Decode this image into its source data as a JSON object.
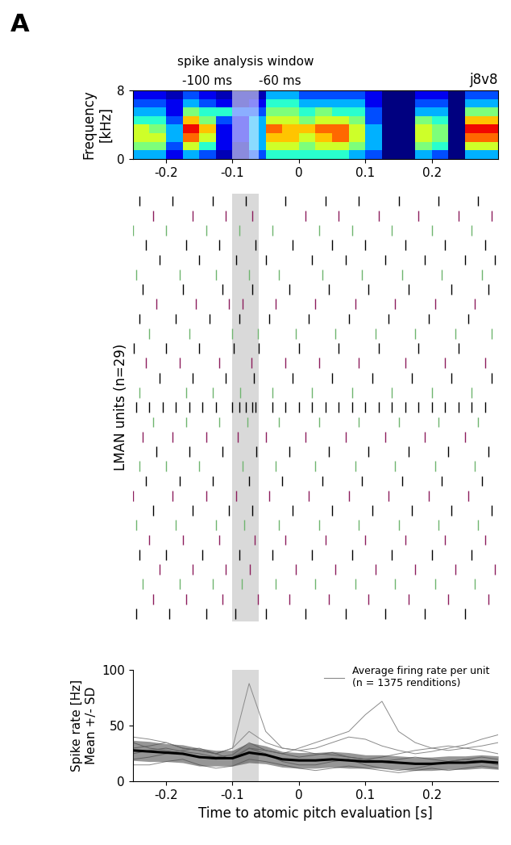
{
  "panel_label": "A",
  "chart_data": [
    {
      "type": "heatmap",
      "ylabel": "Frequency\n[kHz]",
      "annotations": {
        "window_title": "spike analysis window",
        "window_start_label": "-100 ms",
        "window_end_label": "-60 ms",
        "bird": "j8v8"
      },
      "window": [
        -0.1,
        -0.06
      ],
      "time_bins": [
        -0.25,
        -0.225,
        -0.2,
        -0.175,
        -0.15,
        -0.125,
        -0.1,
        -0.075,
        -0.05,
        -0.025,
        0,
        0.025,
        0.05,
        0.075,
        0.1,
        0.125,
        0.15,
        0.175,
        0.2,
        0.225,
        0.25,
        0.275,
        0.3
      ],
      "freq_bins": [
        0,
        1,
        2,
        3,
        4,
        5,
        6,
        7,
        8
      ],
      "cells": [
        [
          0.3,
          0.3,
          0.1,
          0.3,
          0.2,
          0.05,
          0.05,
          0.2,
          0.4,
          0.4,
          0.4,
          0.4,
          0.4,
          0.3,
          0.2,
          0,
          0,
          0.3,
          0.2,
          0,
          0.3,
          0.3
        ],
        [
          0.5,
          0.5,
          0.2,
          0.6,
          0.4,
          0.1,
          0.05,
          0.3,
          0.6,
          0.6,
          0.5,
          0.6,
          0.6,
          0.5,
          0.3,
          0,
          0,
          0.5,
          0.4,
          0,
          0.6,
          0.6
        ],
        [
          0.6,
          0.6,
          0.3,
          0.8,
          0.6,
          0.1,
          0.1,
          0.3,
          0.7,
          0.7,
          0.6,
          0.7,
          0.8,
          0.6,
          0.3,
          0,
          0,
          0.6,
          0.5,
          0,
          0.8,
          0.8
        ],
        [
          0.6,
          0.5,
          0.3,
          0.9,
          0.7,
          0.1,
          0.1,
          0.3,
          0.8,
          0.7,
          0.7,
          0.8,
          0.8,
          0.6,
          0.3,
          0,
          0,
          0.6,
          0.5,
          0,
          0.9,
          0.9
        ],
        [
          0.4,
          0.4,
          0.2,
          0.7,
          0.5,
          0.2,
          0.1,
          0.3,
          0.6,
          0.6,
          0.5,
          0.6,
          0.6,
          0.5,
          0.2,
          0,
          0,
          0.5,
          0.4,
          0,
          0.7,
          0.7
        ],
        [
          0.3,
          0.3,
          0.1,
          0.5,
          0.4,
          0.4,
          0.2,
          0.2,
          0.5,
          0.5,
          0.4,
          0.5,
          0.4,
          0.4,
          0.2,
          0,
          0,
          0.3,
          0.3,
          0,
          0.5,
          0.5
        ],
        [
          0.2,
          0.2,
          0.1,
          0.3,
          0.2,
          0.1,
          0.05,
          0.1,
          0.4,
          0.4,
          0.3,
          0.3,
          0.3,
          0.3,
          0.1,
          0,
          0,
          0.2,
          0.2,
          0,
          0.3,
          0.3
        ],
        [
          0.1,
          0.1,
          0.05,
          0.2,
          0.1,
          0.05,
          0.05,
          0.05,
          0.3,
          0.3,
          0.2,
          0.2,
          0.2,
          0.2,
          0.1,
          0,
          0,
          0.1,
          0.1,
          0,
          0.2,
          0.2
        ]
      ],
      "color_range": [
        0,
        1
      ],
      "xlim": [
        -0.25,
        0.3
      ],
      "ylim": [
        0,
        8
      ],
      "xticks": [
        -0.2,
        -0.1,
        0,
        0.1,
        0.2
      ],
      "yticks": [
        0,
        8
      ]
    },
    {
      "type": "raster",
      "ylabel": "LMAN units (n=29)",
      "tick_labels": false,
      "xlim": [
        -0.25,
        0.3
      ],
      "colors": [
        "#000000",
        "#8c1d5c",
        "#6fb56f",
        "#000000",
        "#000000",
        "#6fb56f",
        "#000000",
        "#8c1d5c",
        "#000000",
        "#6fb56f",
        "#000000",
        "#8c1d5c",
        "#000000",
        "#6fb56f",
        "#000000",
        "#6fb56f",
        "#8c1d5c",
        "#000000",
        "#6fb56f",
        "#000000",
        "#8c1d5c",
        "#000000",
        "#6fb56f",
        "#8c1d5c",
        "#000000",
        "#8c1d5c",
        "#6fb56f",
        "#8c1d5c",
        "#000000"
      ],
      "spikes": [
        [
          -0.24,
          -0.19,
          -0.13,
          -0.08,
          -0.02,
          0.04,
          0.09,
          0.15,
          0.21,
          0.27
        ],
        [
          -0.22,
          -0.16,
          -0.11,
          -0.07,
          0.01,
          0.06,
          0.12,
          0.18,
          0.24,
          0.29
        ],
        [
          -0.25,
          -0.2,
          -0.14,
          -0.09,
          -0.04,
          0.03,
          0.08,
          0.14,
          0.2,
          0.26
        ],
        [
          -0.23,
          -0.17,
          -0.12,
          -0.065,
          -0.01,
          0.05,
          0.1,
          0.16,
          0.22,
          0.28
        ],
        [
          -0.21,
          -0.15,
          -0.095,
          -0.05,
          0.02,
          0.07,
          0.13,
          0.19,
          0.25,
          0.295
        ],
        [
          -0.245,
          -0.18,
          -0.125,
          -0.075,
          -0.03,
          0.035,
          0.095,
          0.155,
          0.215,
          0.275
        ],
        [
          -0.235,
          -0.175,
          -0.115,
          -0.07,
          -0.015,
          0.045,
          0.105,
          0.165,
          0.23,
          0.285
        ],
        [
          -0.215,
          -0.155,
          -0.105,
          -0.085,
          -0.035,
          0.025,
          0.085,
          0.145,
          0.205,
          0.265
        ],
        [
          -0.24,
          -0.185,
          -0.135,
          -0.09,
          -0.045,
          0.015,
          0.075,
          0.135,
          0.195,
          0.255
        ],
        [
          -0.225,
          -0.165,
          -0.1,
          -0.062,
          -0.005,
          0.055,
          0.115,
          0.175,
          0.235,
          0.29
        ],
        [
          -0.248,
          -0.2,
          -0.15,
          -0.098,
          -0.06,
          0.0,
          0.06,
          0.12,
          0.18,
          0.24
        ],
        [
          -0.23,
          -0.18,
          -0.12,
          -0.072,
          -0.02,
          0.03,
          0.09,
          0.16,
          0.22,
          0.28
        ],
        [
          -0.21,
          -0.16,
          -0.11,
          -0.068,
          -0.01,
          0.05,
          0.11,
          0.17,
          0.23,
          0.29
        ],
        [
          -0.24,
          -0.17,
          -0.13,
          -0.088,
          -0.04,
          0.02,
          0.08,
          0.14,
          0.2,
          0.26
        ],
        [
          -0.245,
          -0.225,
          -0.205,
          -0.185,
          -0.165,
          -0.145,
          -0.125,
          -0.1,
          -0.09,
          -0.08,
          -0.07,
          -0.065,
          -0.04,
          -0.02,
          0.0,
          0.02,
          0.04,
          0.06,
          0.08,
          0.1,
          0.12,
          0.14,
          0.16,
          0.18,
          0.2,
          0.22,
          0.24,
          0.26,
          0.28
        ],
        [
          -0.22,
          -0.17,
          -0.12,
          -0.078,
          -0.03,
          0.03,
          0.09,
          0.15,
          0.21,
          0.27
        ],
        [
          -0.235,
          -0.19,
          -0.14,
          -0.092,
          -0.05,
          0.01,
          0.07,
          0.13,
          0.19,
          0.25
        ],
        [
          -0.215,
          -0.165,
          -0.115,
          -0.064,
          -0.015,
          0.045,
          0.105,
          0.165,
          0.225,
          0.285
        ],
        [
          -0.24,
          -0.2,
          -0.15,
          -0.085,
          -0.035,
          0.025,
          0.085,
          0.145,
          0.205,
          0.265
        ],
        [
          -0.23,
          -0.18,
          -0.13,
          -0.075,
          -0.025,
          0.035,
          0.095,
          0.155,
          0.215,
          0.275
        ],
        [
          -0.25,
          -0.19,
          -0.14,
          -0.095,
          -0.045,
          0.015,
          0.075,
          0.135,
          0.195,
          0.255
        ],
        [
          -0.22,
          -0.16,
          -0.105,
          -0.07,
          -0.01,
          0.05,
          0.11,
          0.17,
          0.23,
          0.29
        ],
        [
          -0.245,
          -0.185,
          -0.125,
          -0.082,
          -0.03,
          0.03,
          0.09,
          0.15,
          0.21,
          0.27
        ],
        [
          -0.225,
          -0.175,
          -0.12,
          -0.066,
          -0.02,
          0.04,
          0.1,
          0.16,
          0.22,
          0.28
        ],
        [
          -0.24,
          -0.2,
          -0.145,
          -0.09,
          -0.04,
          0.02,
          0.08,
          0.14,
          0.2,
          0.26
        ],
        [
          -0.21,
          -0.16,
          -0.11,
          -0.074,
          -0.005,
          0.055,
          0.115,
          0.175,
          0.235,
          0.295
        ],
        [
          -0.235,
          -0.18,
          -0.13,
          -0.086,
          -0.035,
          0.025,
          0.085,
          0.145,
          0.205,
          0.265
        ],
        [
          -0.22,
          -0.17,
          -0.115,
          -0.062,
          -0.015,
          0.045,
          0.105,
          0.165,
          0.225,
          0.285
        ],
        [
          -0.245,
          -0.195,
          -0.14,
          -0.096,
          -0.05,
          0.01,
          0.07,
          0.13,
          0.19,
          0.25
        ]
      ]
    },
    {
      "type": "line",
      "xlabel": "Time to atomic pitch evaluation [s]",
      "ylabel": "Spike rate [Hz]\nMean +/- SD",
      "legend": "upper right",
      "legend_label": "Average firing rate per unit\n(n = 1375 renditions)",
      "x": [
        -0.25,
        -0.225,
        -0.2,
        -0.175,
        -0.15,
        -0.125,
        -0.1,
        -0.075,
        -0.05,
        -0.025,
        0,
        0.025,
        0.05,
        0.075,
        0.1,
        0.125,
        0.15,
        0.175,
        0.2,
        0.225,
        0.25,
        0.275,
        0.3
      ],
      "unit_color": "#8a8a8a",
      "unit_rates": [
        [
          30,
          32,
          35,
          30,
          28,
          25,
          30,
          88,
          45,
          30,
          28,
          30,
          35,
          40,
          38,
          32,
          28,
          25,
          27,
          30,
          33,
          38,
          42
        ],
        [
          25,
          28,
          30,
          27,
          25,
          22,
          24,
          35,
          28,
          25,
          30,
          35,
          40,
          45,
          60,
          72,
          45,
          35,
          30,
          28,
          30,
          32,
          35
        ],
        [
          40,
          38,
          35,
          30,
          28,
          25,
          30,
          45,
          35,
          30,
          28,
          25,
          24,
          22,
          20,
          22,
          25,
          28,
          30,
          32,
          30,
          28,
          25
        ],
        [
          20,
          22,
          25,
          28,
          30,
          25,
          20,
          30,
          25,
          18,
          15,
          15,
          18,
          20,
          15,
          12,
          10,
          12,
          15,
          18,
          20,
          18,
          15
        ],
        [
          15,
          15,
          18,
          20,
          15,
          12,
          14,
          20,
          18,
          15,
          12,
          10,
          12,
          14,
          12,
          10,
          8,
          10,
          12,
          10,
          12,
          14,
          12
        ],
        [
          35,
          30,
          28,
          25,
          22,
          20,
          22,
          30,
          28,
          25,
          22,
          24,
          26,
          22,
          20,
          18,
          20,
          22,
          20,
          18,
          20,
          22,
          20
        ]
      ],
      "mean_color": "#000000",
      "mean": [
        28,
        27,
        26,
        25,
        22,
        21,
        21,
        26,
        24,
        20,
        19,
        19,
        20,
        19,
        18,
        18,
        17,
        16,
        16,
        17,
        17,
        18,
        17
      ],
      "sd": [
        9,
        9,
        8,
        8,
        8,
        7,
        7,
        9,
        8,
        7,
        7,
        7,
        7,
        7,
        6,
        6,
        6,
        6,
        6,
        6,
        6,
        6,
        6
      ],
      "xlim": [
        -0.25,
        0.3
      ],
      "ylim": [
        0,
        100
      ],
      "xticks": [
        -0.2,
        -0.1,
        0,
        0.1,
        0.2
      ],
      "yticks": [
        0,
        50,
        100
      ]
    }
  ]
}
